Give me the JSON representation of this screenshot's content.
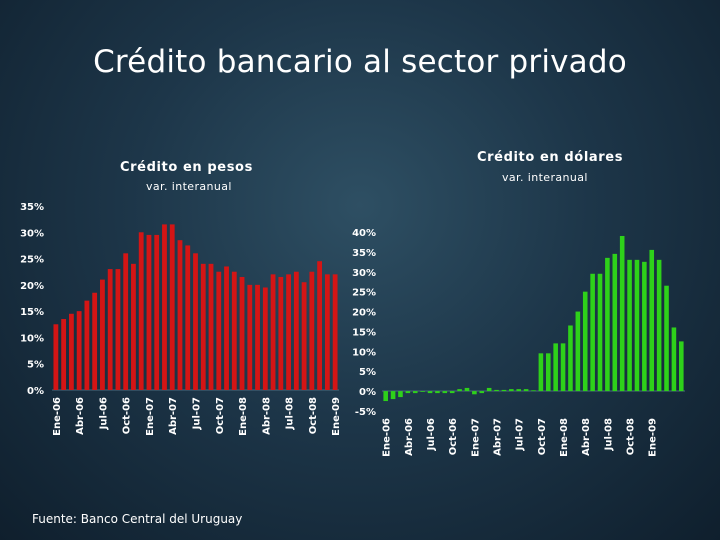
{
  "slide": {
    "title": "Crédito bancario al sector privado",
    "source": "Fuente: Banco Central del Uruguay"
  },
  "chart_data": [
    {
      "type": "bar",
      "title": "Crédito en pesos",
      "subtitle": "var. interanual",
      "color": "#d41515",
      "ylim": [
        0,
        35
      ],
      "ytick_labels": [
        "0%",
        "5%",
        "10%",
        "15%",
        "20%",
        "25%",
        "30%",
        "35%"
      ],
      "yticks": [
        0,
        5,
        10,
        15,
        20,
        25,
        30,
        35
      ],
      "xtick_labels": [
        "Ene-06",
        "Abr-06",
        "Jul-06",
        "Oct-06",
        "Ene-07",
        "Abr-07",
        "Jul-07",
        "Oct-07",
        "Ene-08",
        "Abr-08",
        "Jul-08",
        "Oct-08",
        "Ene-09"
      ],
      "xtick_index": [
        0,
        3,
        6,
        9,
        12,
        15,
        18,
        21,
        24,
        27,
        30,
        33,
        36
      ],
      "values": [
        12.5,
        13.5,
        14.5,
        15,
        17,
        18.5,
        21,
        23,
        23,
        26,
        24,
        30,
        29.5,
        29.5,
        31.5,
        31.5,
        28.5,
        27.5,
        26,
        24,
        24,
        22.5,
        23.5,
        22.5,
        21.5,
        20,
        20,
        19.5,
        22,
        21.5,
        22,
        22.5,
        20.5,
        22.5,
        24.5,
        22,
        22
      ]
    },
    {
      "type": "bar",
      "title": "Crédito en dólares",
      "subtitle": "var. interanual",
      "color": "#2ed11a",
      "ylim": [
        -5,
        40
      ],
      "ytick_labels": [
        "-5%",
        "0%",
        "5%",
        "10%",
        "15%",
        "20%",
        "25%",
        "30%",
        "35%",
        "40%"
      ],
      "yticks": [
        -5,
        0,
        5,
        10,
        15,
        20,
        25,
        30,
        35,
        40
      ],
      "xtick_labels": [
        "Ene-06",
        "Abr-06",
        "Jul-06",
        "Oct-06",
        "Ene-07",
        "Abr-07",
        "Jul-07",
        "Oct-07",
        "Ene-08",
        "Abr-08",
        "Jul-08",
        "Oct-08",
        "Ene-09"
      ],
      "xtick_index": [
        0,
        3,
        6,
        9,
        12,
        15,
        18,
        21,
        24,
        27,
        30,
        33,
        36
      ],
      "values": [
        -2.5,
        -2,
        -1.5,
        -0.5,
        -0.5,
        0,
        -0.5,
        -0.5,
        -0.5,
        -0.5,
        0.5,
        0.8,
        -0.8,
        -0.5,
        0.8,
        0.3,
        0.3,
        0.5,
        0.5,
        0.5,
        0.2,
        9.5,
        9.5,
        12,
        12,
        16.5,
        20,
        25,
        29.5,
        29.5,
        33.5,
        34.5,
        39,
        33,
        33,
        32.5,
        35.5,
        33,
        26.5,
        16,
        12.5
      ]
    }
  ]
}
